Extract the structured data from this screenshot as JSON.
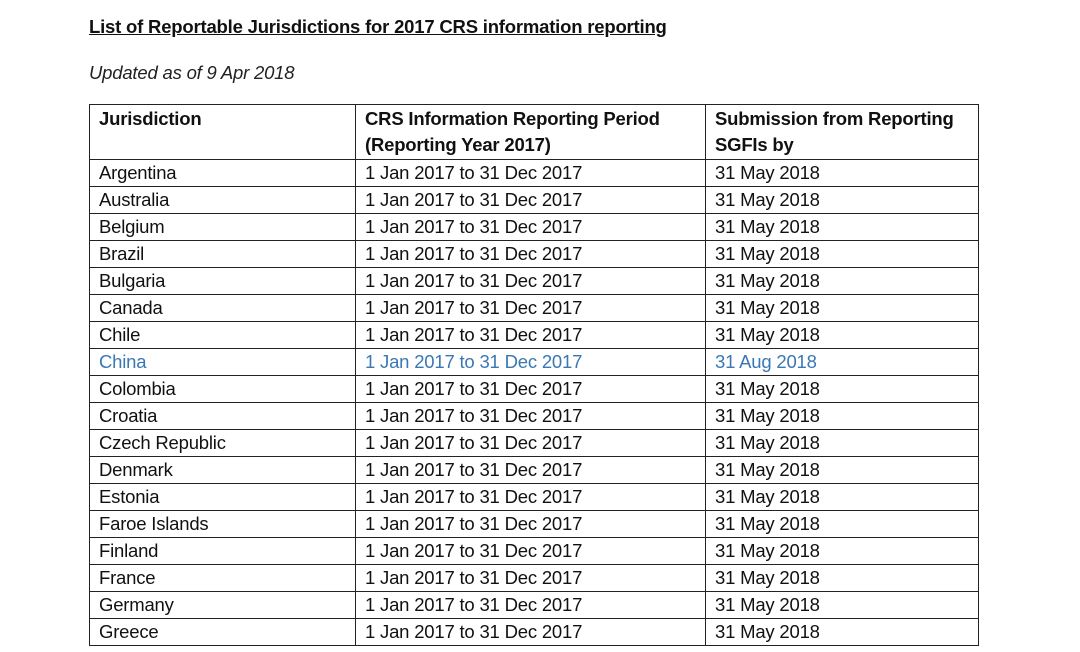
{
  "title": "List of Reportable Jurisdictions for 2017 CRS information reporting",
  "subtitle": "Updated as of 9 Apr 2018",
  "highlight_color": "#3a78b5",
  "table": {
    "headers": [
      "Jurisdiction",
      "CRS Information Reporting Period (Reporting Year 2017)",
      "Submission from Reporting SGFIs by"
    ],
    "rows": [
      {
        "jurisdiction": "Argentina",
        "period": "1 Jan 2017 to 31 Dec 2017",
        "submission": "31 May 2018",
        "highlighted": false
      },
      {
        "jurisdiction": "Australia",
        "period": "1 Jan 2017 to 31 Dec 2017",
        "submission": "31 May 2018",
        "highlighted": false
      },
      {
        "jurisdiction": "Belgium",
        "period": "1 Jan 2017 to 31 Dec 2017",
        "submission": "31 May 2018",
        "highlighted": false
      },
      {
        "jurisdiction": "Brazil",
        "period": "1 Jan 2017 to 31 Dec 2017",
        "submission": "31 May 2018",
        "highlighted": false
      },
      {
        "jurisdiction": "Bulgaria",
        "period": "1 Jan 2017 to 31 Dec 2017",
        "submission": "31 May 2018",
        "highlighted": false
      },
      {
        "jurisdiction": "Canada",
        "period": "1 Jan 2017 to 31 Dec 2017",
        "submission": "31 May 2018",
        "highlighted": false
      },
      {
        "jurisdiction": "Chile",
        "period": "1 Jan 2017 to 31 Dec 2017",
        "submission": "31 May 2018",
        "highlighted": false
      },
      {
        "jurisdiction": "China",
        "period": "1 Jan 2017 to 31 Dec 2017",
        "submission": "31 Aug 2018",
        "highlighted": true
      },
      {
        "jurisdiction": "Colombia",
        "period": "1 Jan 2017 to 31 Dec 2017",
        "submission": "31 May 2018",
        "highlighted": false
      },
      {
        "jurisdiction": "Croatia",
        "period": "1 Jan 2017 to 31 Dec 2017",
        "submission": "31 May 2018",
        "highlighted": false
      },
      {
        "jurisdiction": "Czech Republic",
        "period": "1 Jan 2017 to 31 Dec 2017",
        "submission": "31 May 2018",
        "highlighted": false
      },
      {
        "jurisdiction": "Denmark",
        "period": "1 Jan 2017 to 31 Dec 2017",
        "submission": "31 May 2018",
        "highlighted": false
      },
      {
        "jurisdiction": "Estonia",
        "period": "1 Jan 2017 to 31 Dec 2017",
        "submission": "31 May 2018",
        "highlighted": false
      },
      {
        "jurisdiction": "Faroe Islands",
        "period": "1 Jan 2017 to 31 Dec 2017",
        "submission": "31 May 2018",
        "highlighted": false
      },
      {
        "jurisdiction": "Finland",
        "period": "1 Jan 2017 to 31 Dec 2017",
        "submission": "31 May 2018",
        "highlighted": false
      },
      {
        "jurisdiction": "France",
        "period": "1 Jan 2017 to 31 Dec 2017",
        "submission": "31 May 2018",
        "highlighted": false
      },
      {
        "jurisdiction": "Germany",
        "period": "1 Jan 2017 to 31 Dec 2017",
        "submission": "31 May 2018",
        "highlighted": false
      },
      {
        "jurisdiction": "Greece",
        "period": "1 Jan 2017 to 31 Dec 2017",
        "submission": "31 May 2018",
        "highlighted": false
      }
    ]
  }
}
